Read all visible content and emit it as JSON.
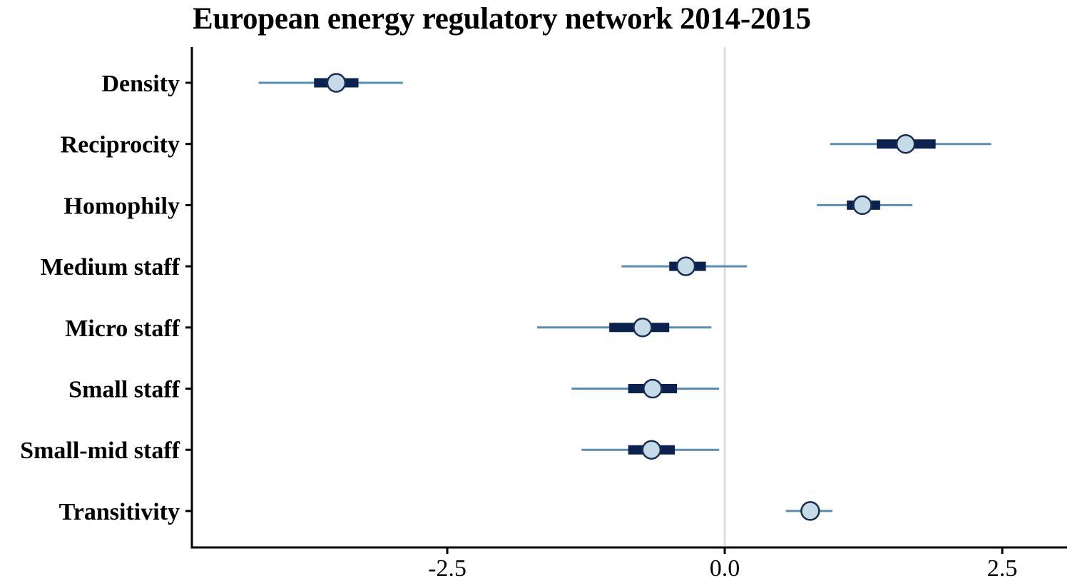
{
  "chart_data": {
    "type": "coefficient-plot",
    "title": "European energy regulatory network 2014-2015",
    "xlabel": "",
    "ylabel": "",
    "xlim": [
      -4.8,
      3.1
    ],
    "x_ticks": [
      -2.5,
      0.0,
      2.5
    ],
    "x_tick_labels": [
      "-2.5",
      "0.0",
      "2.5"
    ],
    "reference_line": 0.0,
    "grid": false,
    "categories": [
      "Density",
      "Reciprocity",
      "Homophily",
      "Medium staff",
      "Micro staff",
      "Small staff",
      "Small-mid staff",
      "Transitivity"
    ],
    "series": [
      {
        "points": [
          {
            "label": "Density",
            "estimate": -3.5,
            "inner": [
              -3.7,
              -3.3
            ],
            "outer": [
              -4.2,
              -2.9
            ]
          },
          {
            "label": "Reciprocity",
            "estimate": 1.63,
            "inner": [
              1.37,
              1.9
            ],
            "outer": [
              0.95,
              2.4
            ]
          },
          {
            "label": "Homophily",
            "estimate": 1.24,
            "inner": [
              1.1,
              1.4
            ],
            "outer": [
              0.83,
              1.69
            ]
          },
          {
            "label": "Medium staff",
            "estimate": -0.35,
            "inner": [
              -0.5,
              -0.17
            ],
            "outer": [
              -0.93,
              0.2
            ]
          },
          {
            "label": "Micro staff",
            "estimate": -0.74,
            "inner": [
              -1.04,
              -0.5
            ],
            "outer": [
              -1.69,
              -0.12
            ]
          },
          {
            "label": "Small staff",
            "estimate": -0.65,
            "inner": [
              -0.87,
              -0.43
            ],
            "outer": [
              -1.38,
              -0.05
            ]
          },
          {
            "label": "Small-mid staff",
            "estimate": -0.66,
            "inner": [
              -0.87,
              -0.45
            ],
            "outer": [
              -1.29,
              -0.05
            ]
          },
          {
            "label": "Transitivity",
            "estimate": 0.77,
            "inner": [
              0.73,
              0.81
            ],
            "outer": [
              0.55,
              0.97
            ]
          }
        ]
      }
    ],
    "colors": {
      "outer_interval": "#5b8db3",
      "inner_interval": "#0b2150",
      "point_fill": "#c6dbe8",
      "point_stroke": "#1c2d52",
      "reference_line": "#dddddd",
      "axis": "#000000"
    }
  }
}
